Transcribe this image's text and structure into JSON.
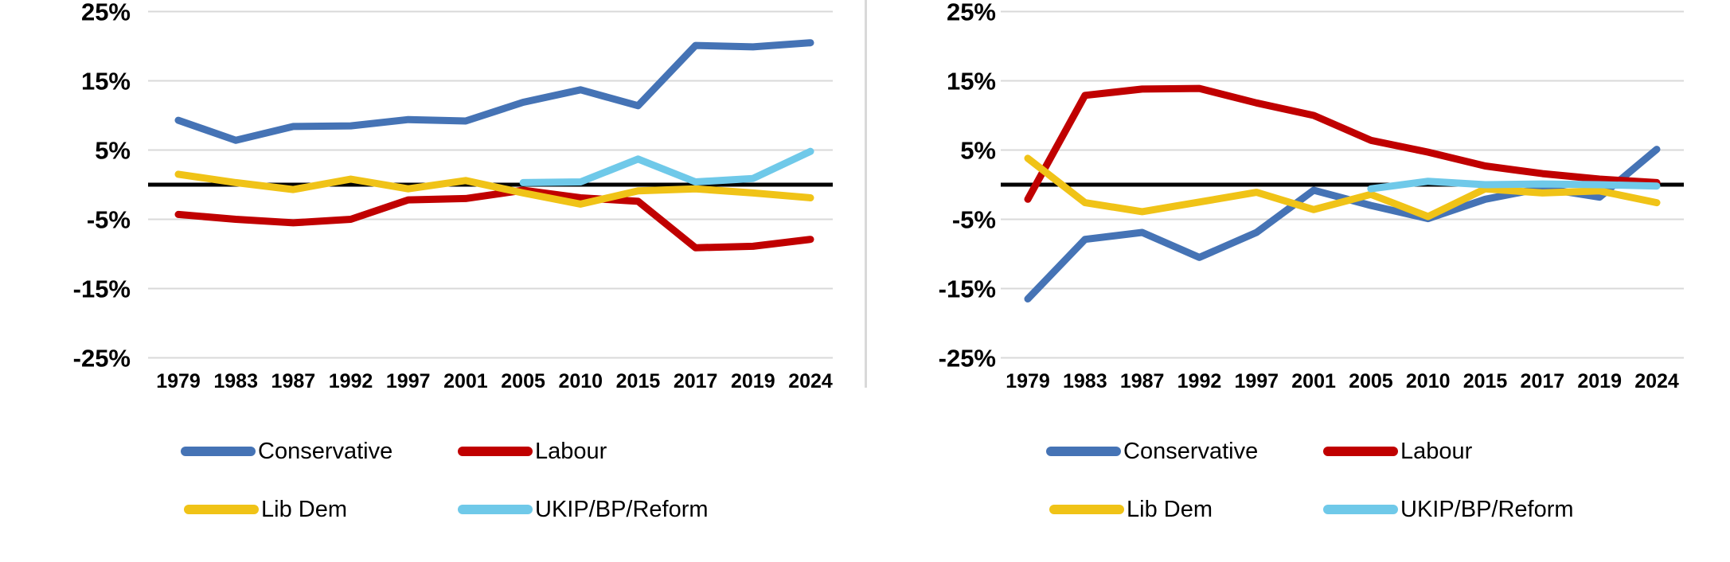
{
  "page": {
    "background": "#ffffff"
  },
  "colors": {
    "grid": "#d9d9d9",
    "zero_line": "#000000",
    "divider": "#d9d9d9",
    "axis_text": "#000000",
    "conservative": "#4573b5",
    "labour": "#c00000",
    "libdem": "#f0c317",
    "ukip": "#6fc9e9"
  },
  "chart_data": [
    {
      "type": "line",
      "title": "",
      "categories": [
        "1979",
        "1983",
        "1987",
        "1992",
        "1997",
        "2001",
        "2005",
        "2010",
        "2015",
        "2017",
        "2019",
        "2024"
      ],
      "series": [
        {
          "name": "Conservative",
          "color": "#4573b5",
          "values": [
            9.3,
            6.4,
            8.4,
            8.5,
            9.4,
            9.2,
            11.9,
            13.7,
            11.4,
            20.1,
            19.9,
            20.5
          ]
        },
        {
          "name": "Labour",
          "color": "#c00000",
          "values": [
            -4.3,
            -5.0,
            -5.5,
            -5.0,
            -2.2,
            -2.0,
            -0.8,
            -1.9,
            -2.4,
            -9.1,
            -8.9,
            -7.9
          ]
        },
        {
          "name": "Lib Dem",
          "color": "#f0c317",
          "values": [
            1.5,
            0.3,
            -0.7,
            0.8,
            -0.6,
            0.6,
            -1.2,
            -2.8,
            -0.9,
            -0.6,
            -1.2,
            -1.9
          ]
        },
        {
          "name": "UKIP/BP/Reform",
          "color": "#6fc9e9",
          "values": [
            null,
            null,
            null,
            null,
            null,
            null,
            0.3,
            0.4,
            3.7,
            0.4,
            0.9,
            4.8
          ]
        }
      ],
      "ylim": [
        -25,
        25
      ],
      "yticks": [
        25,
        15,
        5,
        -5,
        -15,
        -25
      ],
      "ytick_labels": [
        "25%",
        "15%",
        "5%",
        "-5%",
        "-15%",
        "-25%"
      ],
      "zero_line": true,
      "grid": true,
      "legend_position": "bottom"
    },
    {
      "type": "line",
      "title": "",
      "categories": [
        "1979",
        "1983",
        "1987",
        "1992",
        "1997",
        "2001",
        "2005",
        "2010",
        "2015",
        "2017",
        "2019",
        "2024"
      ],
      "series": [
        {
          "name": "Conservative",
          "color": "#4573b5",
          "values": [
            -16.5,
            -7.9,
            -6.9,
            -10.5,
            -6.9,
            -0.8,
            -3.0,
            -4.9,
            -2.1,
            -0.5,
            -1.8,
            5.1
          ]
        },
        {
          "name": "Labour",
          "color": "#c00000",
          "values": [
            -2.1,
            12.9,
            13.8,
            13.9,
            11.8,
            10.0,
            6.4,
            4.7,
            2.7,
            1.6,
            0.8,
            0.3
          ]
        },
        {
          "name": "Lib Dem",
          "color": "#f0c317",
          "values": [
            3.8,
            -2.6,
            -3.9,
            -2.5,
            -1.1,
            -3.6,
            -1.4,
            -4.6,
            -0.6,
            -1.2,
            -0.9,
            -2.6
          ]
        },
        {
          "name": "UKIP/BP/Reform",
          "color": "#6fc9e9",
          "values": [
            null,
            null,
            null,
            null,
            null,
            null,
            -0.6,
            0.5,
            0.0,
            0.1,
            0.0,
            -0.2
          ]
        }
      ],
      "ylim": [
        -25,
        25
      ],
      "yticks": [
        25,
        15,
        5,
        -5,
        -15,
        -25
      ],
      "ytick_labels": [
        "25%",
        "15%",
        "5%",
        "-5%",
        "-15%",
        "-25%"
      ],
      "zero_line": true,
      "grid": true,
      "legend_position": "bottom"
    }
  ]
}
